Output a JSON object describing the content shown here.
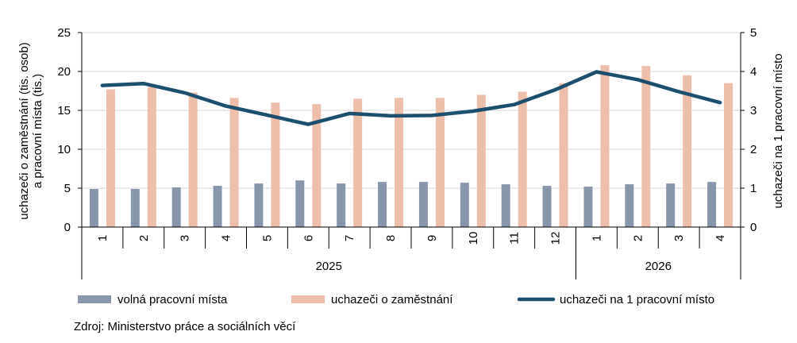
{
  "chart_data": {
    "type": "bar+line",
    "categories": [
      "1",
      "2",
      "3",
      "4",
      "5",
      "6",
      "7",
      "8",
      "9",
      "10",
      "11",
      "12",
      "1",
      "2",
      "3",
      "4"
    ],
    "groups": [
      {
        "label": "2025",
        "start": 0,
        "end": 11
      },
      {
        "label": "2026",
        "start": 12,
        "end": 15
      }
    ],
    "series": [
      {
        "name": "volná pracovní místa",
        "type": "bar",
        "axis": "left",
        "color": "#8896AB",
        "values": [
          4.9,
          4.9,
          5.1,
          5.3,
          5.6,
          6.0,
          5.6,
          5.8,
          5.8,
          5.7,
          5.5,
          5.3,
          5.2,
          5.5,
          5.6,
          5.8
        ]
      },
      {
        "name": "uchazeči o zaměstnání",
        "type": "bar",
        "axis": "left",
        "color": "#EDBEAA",
        "values": [
          17.7,
          18.0,
          17.3,
          16.6,
          16.0,
          15.8,
          16.5,
          16.6,
          16.6,
          17.0,
          17.4,
          18.5,
          20.8,
          20.7,
          19.5,
          18.5
        ]
      },
      {
        "name": "uchazeči na 1 pracovní místo",
        "type": "line",
        "axis": "right",
        "color": "#1C4F6E",
        "values": [
          3.64,
          3.69,
          3.45,
          3.11,
          2.88,
          2.64,
          2.92,
          2.86,
          2.87,
          2.98,
          3.15,
          3.53,
          3.99,
          3.79,
          3.48,
          3.2
        ]
      }
    ],
    "y_left": {
      "label_line1": "uchazeči o zaměstnání  (tis. osob)",
      "label_line2": "a pracovní místa (tis.)",
      "ylim": [
        0,
        25
      ],
      "ticks": [
        "0",
        "5",
        "10",
        "15",
        "20",
        "25"
      ]
    },
    "y_right": {
      "label": "uchazeči na 1 pracovní místo",
      "ylim": [
        0,
        5
      ],
      "ticks": [
        "0",
        "1",
        "2",
        "3",
        "4",
        "5"
      ]
    },
    "grid": true,
    "legend_position": "bottom"
  },
  "source": "Zdroj: Ministerstvo  práce a sociálních věcí"
}
